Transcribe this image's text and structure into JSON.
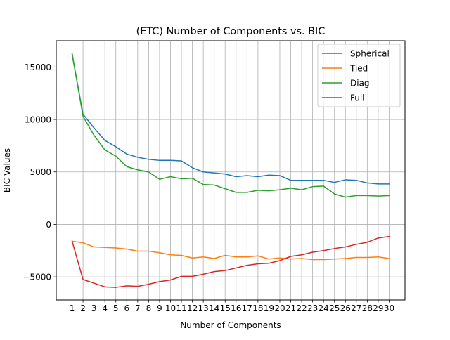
{
  "chart_data": {
    "type": "line",
    "title": "(ETC) Number of Components vs. BIC",
    "xlabel": "Number of Components",
    "ylabel": "BIC Values",
    "x": [
      1,
      2,
      3,
      4,
      5,
      6,
      7,
      8,
      9,
      10,
      11,
      12,
      13,
      14,
      15,
      16,
      17,
      18,
      19,
      20,
      21,
      22,
      23,
      24,
      25,
      26,
      27,
      28,
      29,
      30
    ],
    "xlim": [
      -0.45,
      31.45
    ],
    "ylim": [
      -7200,
      17500
    ],
    "yticks": [
      -5000,
      0,
      5000,
      10000,
      15000
    ],
    "ytick_labels": [
      "−5000",
      "0",
      "5000",
      "10000",
      "15000"
    ],
    "grid": true,
    "legend_position": "upper right",
    "series": [
      {
        "name": "Spherical",
        "color": "#1f77b4",
        "values": [
          16200,
          10500,
          9200,
          8000,
          7400,
          6700,
          6400,
          6200,
          6100,
          6100,
          6050,
          5400,
          5000,
          4900,
          4800,
          4550,
          4650,
          4550,
          4700,
          4650,
          4200,
          4200,
          4200,
          4200,
          4000,
          4250,
          4200,
          3950,
          3850,
          3850
        ]
      },
      {
        "name": "Tied",
        "color": "#ff7f0e",
        "values": [
          -1600,
          -1750,
          -2150,
          -2200,
          -2250,
          -2350,
          -2550,
          -2550,
          -2700,
          -2900,
          -2950,
          -3200,
          -3100,
          -3250,
          -2950,
          -3100,
          -3100,
          -3000,
          -3300,
          -3200,
          -3300,
          -3250,
          -3350,
          -3350,
          -3300,
          -3250,
          -3150,
          -3150,
          -3100,
          -3250
        ]
      },
      {
        "name": "Diag",
        "color": "#2ca02c",
        "values": [
          16300,
          10300,
          8500,
          7100,
          6500,
          5500,
          5200,
          5000,
          4300,
          4550,
          4350,
          4400,
          3800,
          3750,
          3400,
          3050,
          3050,
          3250,
          3200,
          3300,
          3450,
          3300,
          3600,
          3650,
          2900,
          2600,
          2750,
          2750,
          2700,
          2750
        ]
      },
      {
        "name": "Full",
        "color": "#d62728",
        "values": [
          -1600,
          -5250,
          -5600,
          -5950,
          -6000,
          -5850,
          -5900,
          -5700,
          -5450,
          -5300,
          -4950,
          -4950,
          -4750,
          -4500,
          -4400,
          -4150,
          -3900,
          -3750,
          -3700,
          -3450,
          -3050,
          -2900,
          -2650,
          -2500,
          -2300,
          -2150,
          -1900,
          -1700,
          -1300,
          -1150
        ]
      }
    ]
  }
}
